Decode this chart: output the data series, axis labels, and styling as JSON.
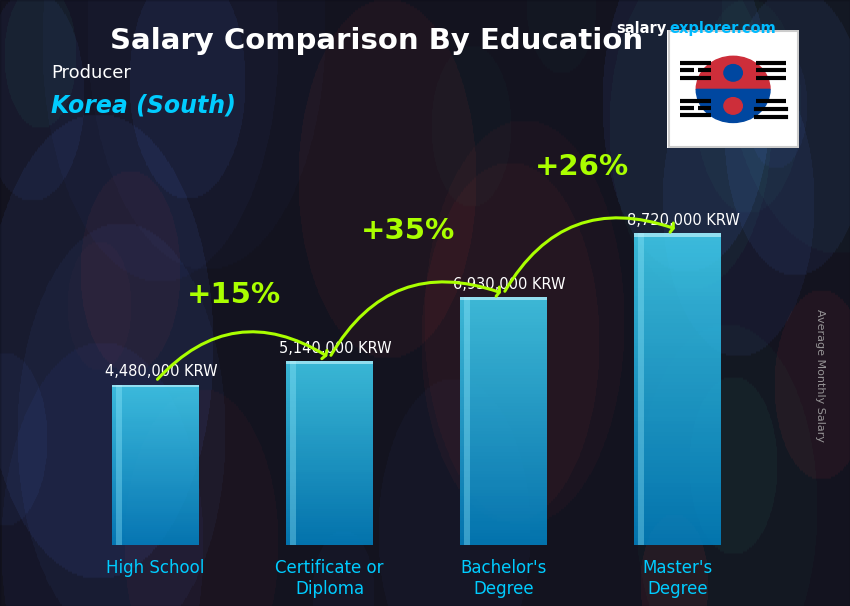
{
  "title": "Salary Comparison By Education",
  "subtitle_job": "Producer",
  "subtitle_country": "Korea (South)",
  "ylabel": "Average Monthly Salary",
  "brand1": "salary",
  "brand2": "explorer.com",
  "categories": [
    "High School",
    "Certificate or\nDiploma",
    "Bachelor's\nDegree",
    "Master's\nDegree"
  ],
  "values": [
    4480000,
    5140000,
    6930000,
    8720000
  ],
  "value_labels": [
    "4,480,000 KRW",
    "5,140,000 KRW",
    "6,930,000 KRW",
    "8,720,000 KRW"
  ],
  "pct_changes": [
    "+15%",
    "+35%",
    "+26%"
  ],
  "bar_color_top": "#55ddff",
  "bar_color_mid": "#22bbee",
  "bar_color_bottom": "#0088cc",
  "bar_alpha": 0.82,
  "bg_color": "#1c1c24",
  "title_color": "#ffffff",
  "subtitle_job_color": "#ffffff",
  "subtitle_country_color": "#00ccff",
  "value_label_color": "#ffffff",
  "pct_color": "#aaff00",
  "arrow_color": "#aaff00",
  "xtick_color": "#00ccff",
  "brand_color1": "#ffffff",
  "brand_color2": "#00bbff",
  "ylabel_color": "#aaaaaa",
  "ylim": [
    0,
    10500000
  ],
  "title_fontsize": 21,
  "subtitle_job_fontsize": 13,
  "subtitle_country_fontsize": 17,
  "value_fontsize": 10.5,
  "pct_fontsize": 21,
  "xtick_fontsize": 12,
  "ylabel_fontsize": 8,
  "bar_width": 0.5,
  "pct_positions": [
    [
      0,
      1,
      "+15%"
    ],
    [
      1,
      2,
      "+35%"
    ],
    [
      2,
      3,
      "+26%"
    ]
  ]
}
